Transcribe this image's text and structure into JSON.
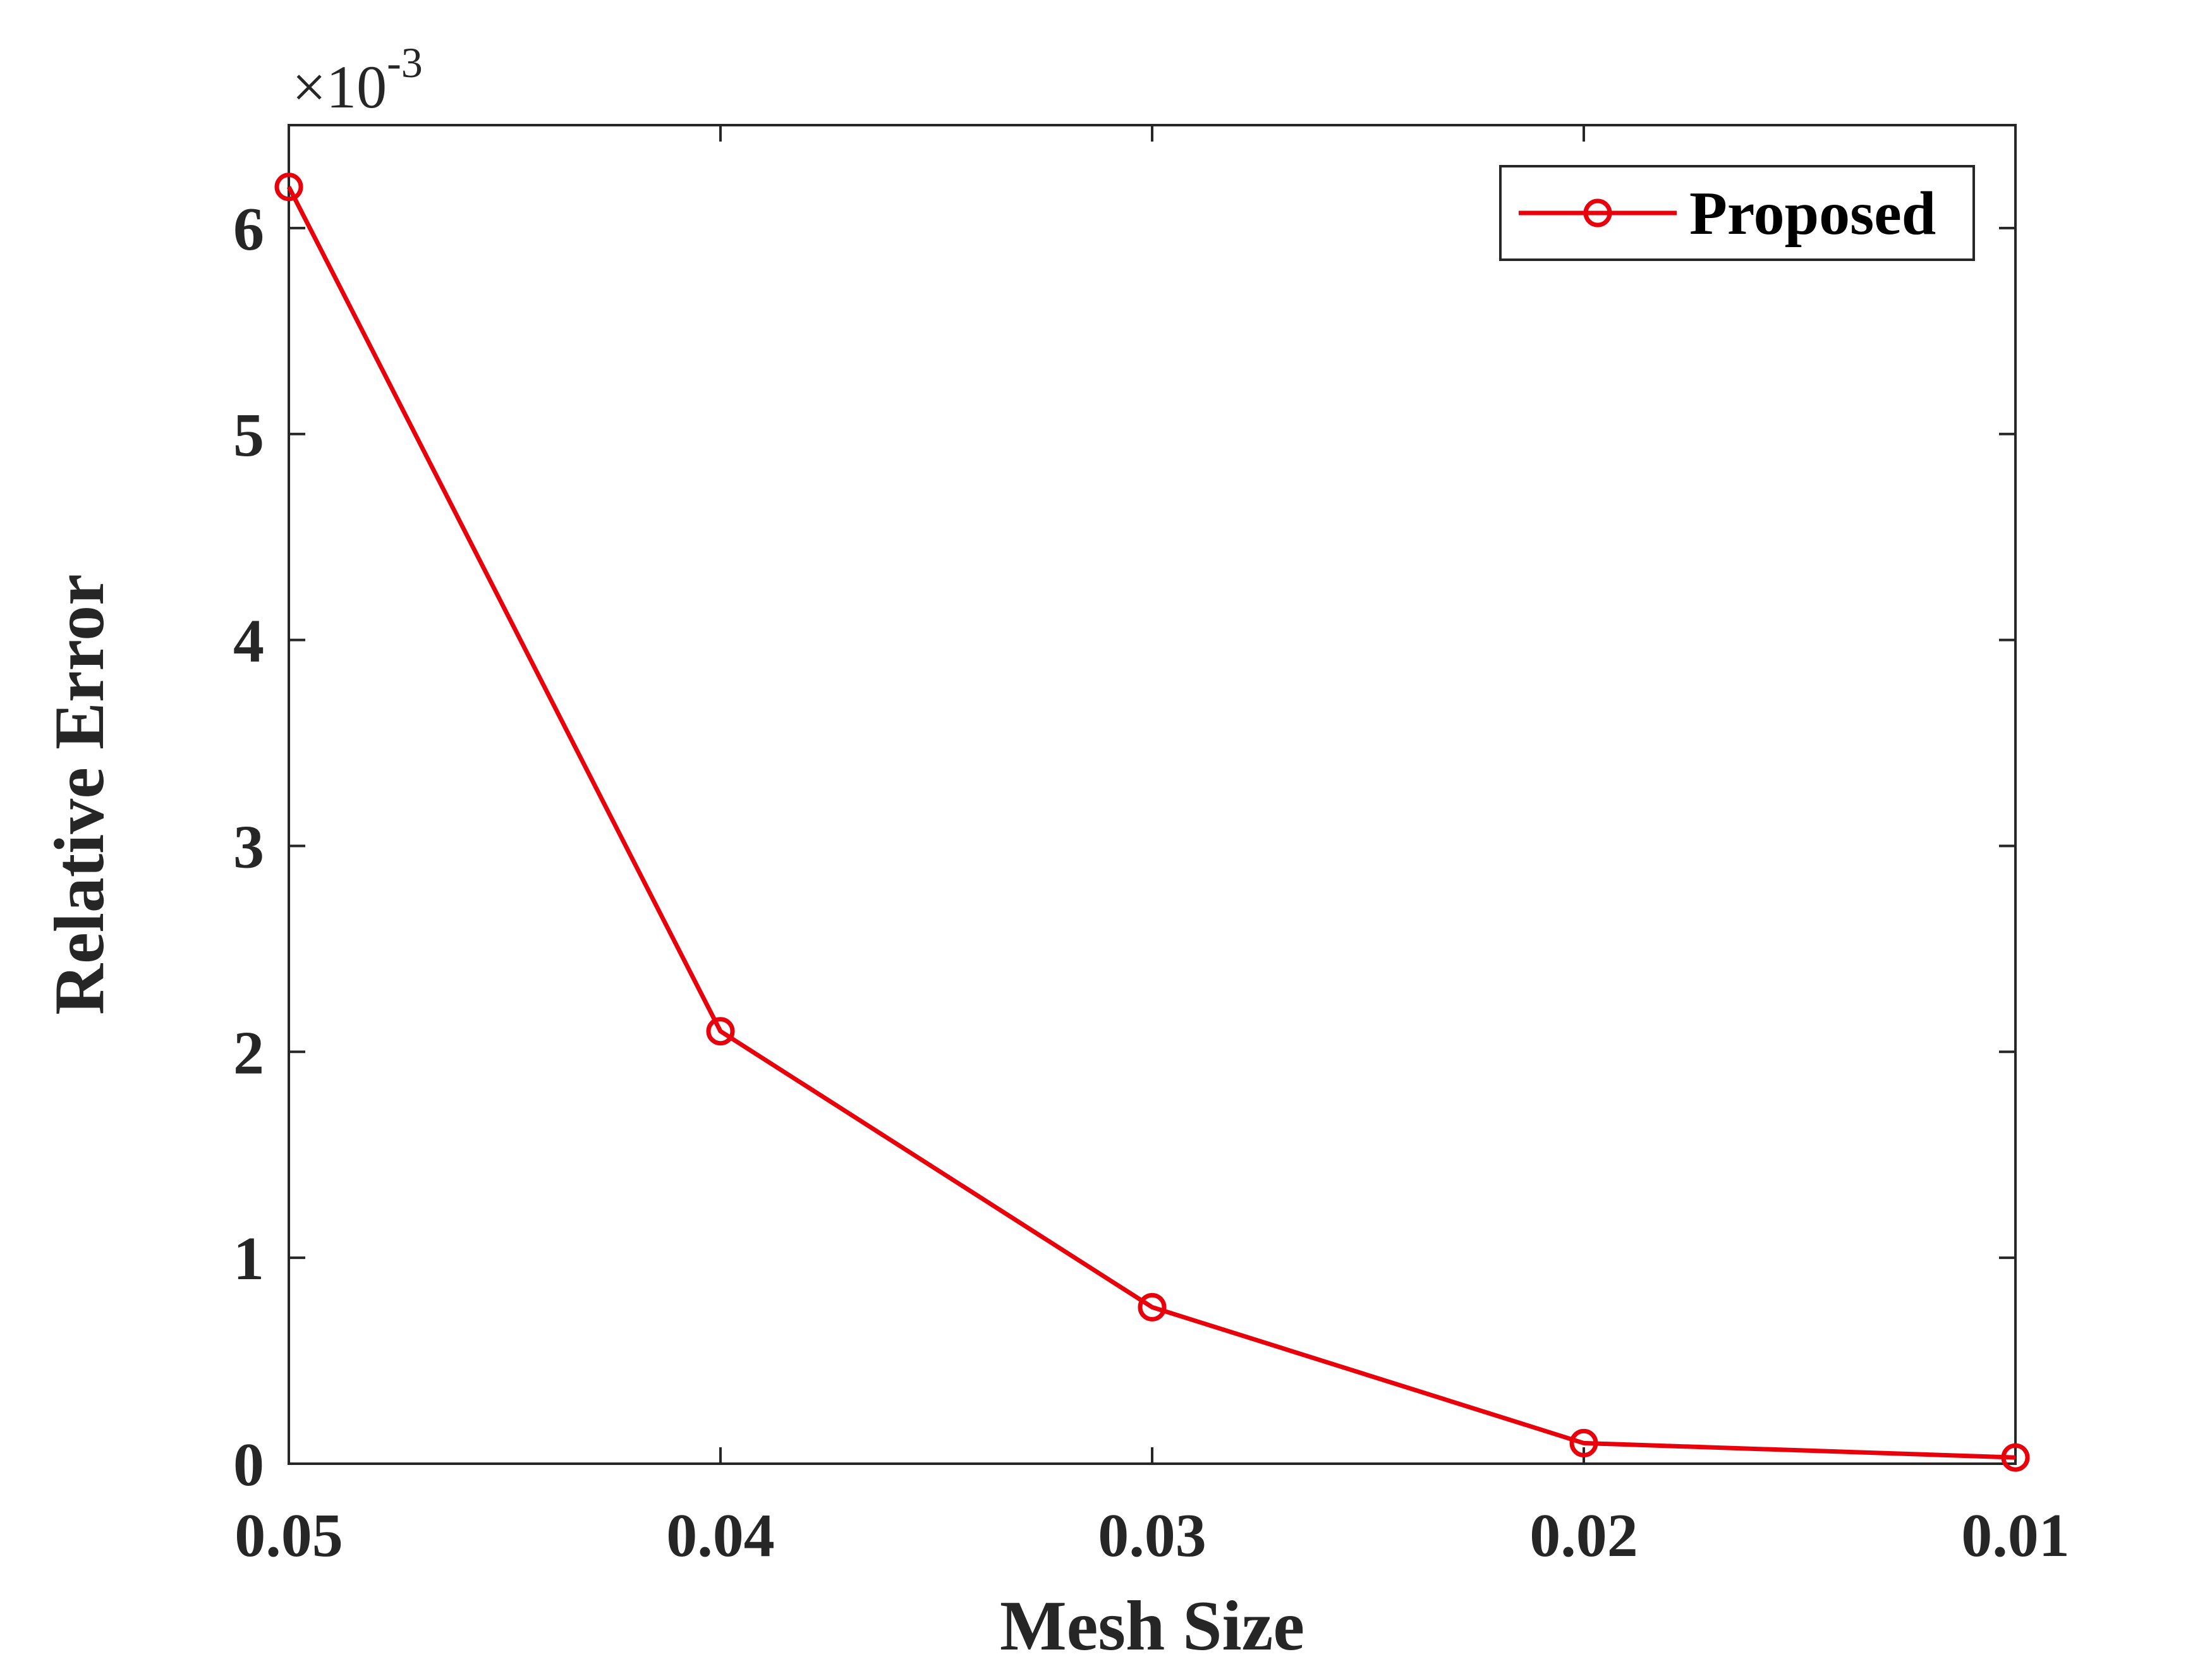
{
  "chart_data": {
    "type": "line",
    "x": [
      0.05,
      0.04,
      0.03,
      0.02,
      0.01
    ],
    "series": [
      {
        "name": "Proposed",
        "values": [
          0.0062,
          0.0021,
          0.00076,
          0.0001,
          3e-05
        ]
      }
    ],
    "xlabel": "Mesh Size",
    "ylabel": "Relative Error",
    "xlim": [
      0.05,
      0.01
    ],
    "ylim": [
      0,
      0.0065
    ],
    "x_reversed": true,
    "x_ticks": [
      "0.05",
      "0.04",
      "0.03",
      "0.02",
      "0.01"
    ],
    "y_ticks": [
      "0",
      "1",
      "2",
      "3",
      "4",
      "5",
      "6"
    ],
    "y_exponent_prefix": "×10",
    "y_exponent_power": "-3",
    "legend_position": "top-right",
    "grid": false,
    "colors": {
      "series": "#e8000b",
      "axes": "#262626"
    },
    "marker": "circle-open"
  }
}
